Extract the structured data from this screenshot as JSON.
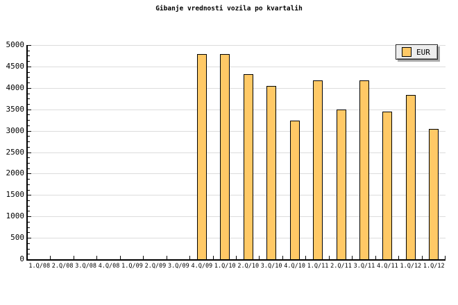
{
  "title": "Gibanje vrednosti vozila po kvartalih",
  "legend": {
    "label": "EUR"
  },
  "colors": {
    "background": "#FFFFFF",
    "bar_fill": "#FFC966",
    "bar_border": "#000000",
    "gridline": "#DCDCDC",
    "axis": "#000000",
    "legend_bg": "#EDEDED",
    "legend_shadow": "#AAAAAA"
  },
  "chart_data": {
    "type": "bar",
    "title": "Gibanje vrednosti vozila po kvartalih",
    "categories": [
      "1.Q/08",
      "2.Q/08",
      "3.Q/08",
      "4.Q/08",
      "1.Q/09",
      "2.Q/09",
      "3.Q/09",
      "4.Q/09",
      "1.Q/10",
      "2.Q/10",
      "3.Q/10",
      "4.Q/10",
      "1.Q/11",
      "2.Q/11",
      "3.Q/11",
      "4.Q/11",
      "1.Q/12",
      "1.Q/12"
    ],
    "series": [
      {
        "name": "EUR",
        "color": "#FFC966",
        "values": [
          null,
          null,
          null,
          null,
          null,
          null,
          null,
          4790,
          4790,
          4320,
          4050,
          3230,
          4180,
          3500,
          4180,
          3450,
          3840,
          3040
        ]
      }
    ],
    "xlabel": "",
    "ylabel": "",
    "ylim": [
      0,
      5000
    ],
    "ytick_major": 500,
    "ytick_minor": 125,
    "grid": "horizontal",
    "legend_position": "top-right"
  }
}
